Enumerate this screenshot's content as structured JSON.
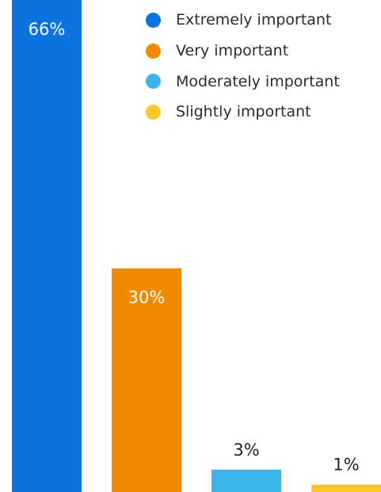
{
  "chart_data": {
    "type": "bar",
    "title": "",
    "xlabel": "",
    "ylabel": "",
    "ylim": [
      0,
      66
    ],
    "grid": false,
    "legend_position": "top-right",
    "categories": [
      "Extremely important",
      "Very important",
      "Moderately important",
      "Slightly important"
    ],
    "values": [
      66,
      30,
      3,
      1
    ],
    "data_labels": [
      "66%",
      "30%",
      "3%",
      "1%"
    ],
    "colors": [
      "#0A73E0",
      "#F28A00",
      "#3DB4E8",
      "#FFC52E"
    ],
    "label_colors": [
      "#ffffff",
      "#ffffff",
      "#222222",
      "#222222"
    ]
  },
  "legend": {
    "items": [
      {
        "label": "Extremely important",
        "color": "#0A73E0"
      },
      {
        "label": "Very important",
        "color": "#F28A00"
      },
      {
        "label": "Moderately important",
        "color": "#3DB4E8"
      },
      {
        "label": "Slightly important",
        "color": "#FFC52E"
      }
    ]
  }
}
